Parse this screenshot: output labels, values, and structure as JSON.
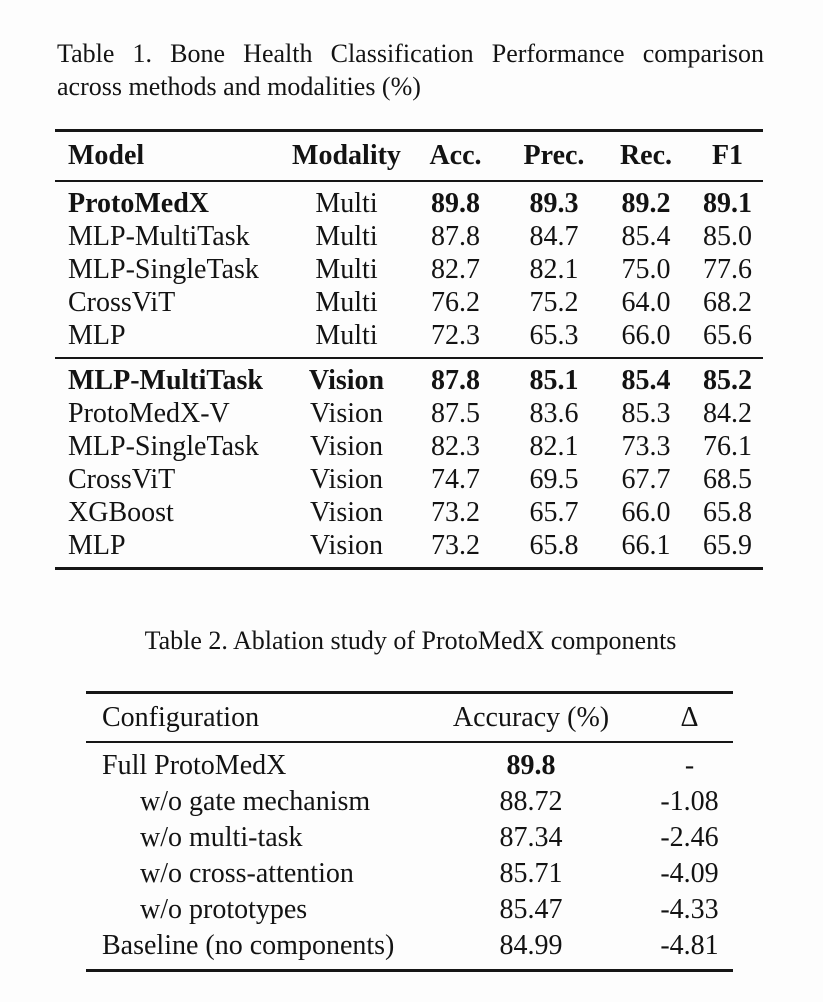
{
  "page": {
    "background": "#fdfdfd",
    "text_color": "#131313",
    "rule_color": "#161616"
  },
  "table1": {
    "caption": {
      "line1": "Table 1. Bone Health Classification Performance comparison",
      "line2": "across methods and modalities (%)"
    },
    "columns": [
      "Model",
      "Modality",
      "Acc.",
      "Prec.",
      "Rec.",
      "F1"
    ],
    "sections": {
      "multi": {
        "rows": [
          {
            "cells": [
              "ProtoMedX",
              "Multi",
              "89.8",
              "89.3",
              "89.2",
              "89.1"
            ],
            "bold": [
              true,
              false,
              true,
              true,
              true,
              true
            ],
            "indent": false
          },
          {
            "cells": [
              "MLP-MultiTask",
              "Multi",
              "87.8",
              "84.7",
              "85.4",
              "85.0"
            ],
            "bold": [
              false,
              false,
              false,
              false,
              false,
              false
            ],
            "indent": false
          },
          {
            "cells": [
              "MLP-SingleTask",
              "Multi",
              "82.7",
              "82.1",
              "75.0",
              "77.6"
            ],
            "bold": [
              false,
              false,
              false,
              false,
              false,
              false
            ],
            "indent": false
          },
          {
            "cells": [
              "CrossViT",
              "Multi",
              "76.2",
              "75.2",
              "64.0",
              "68.2"
            ],
            "bold": [
              false,
              false,
              false,
              false,
              false,
              false
            ],
            "indent": false
          },
          {
            "cells": [
              "MLP",
              "Multi",
              "72.3",
              "65.3",
              "66.0",
              "65.6"
            ],
            "bold": [
              false,
              false,
              false,
              false,
              false,
              false
            ],
            "indent": false
          }
        ]
      },
      "vision": {
        "rows": [
          {
            "cells": [
              "MLP-MultiTask",
              "Vision",
              "87.8",
              "85.1",
              "85.4",
              "85.2"
            ],
            "bold": [
              true,
              true,
              true,
              true,
              true,
              true
            ],
            "indent": false
          },
          {
            "cells": [
              "ProtoMedX-V",
              "Vision",
              "87.5",
              "83.6",
              "85.3",
              "84.2"
            ],
            "bold": [
              false,
              false,
              false,
              false,
              false,
              false
            ],
            "indent": false
          },
          {
            "cells": [
              "MLP-SingleTask",
              "Vision",
              "82.3",
              "82.1",
              "73.3",
              "76.1"
            ],
            "bold": [
              false,
              false,
              false,
              false,
              false,
              false
            ],
            "indent": false
          },
          {
            "cells": [
              "CrossViT",
              "Vision",
              "74.7",
              "69.5",
              "67.7",
              "68.5"
            ],
            "bold": [
              false,
              false,
              false,
              false,
              false,
              false
            ],
            "indent": false
          },
          {
            "cells": [
              "XGBoost",
              "Vision",
              "73.2",
              "65.7",
              "66.0",
              "65.8"
            ],
            "bold": [
              false,
              false,
              false,
              false,
              false,
              false
            ],
            "indent": false
          },
          {
            "cells": [
              "MLP",
              "Vision",
              "73.2",
              "65.8",
              "66.1",
              "65.9"
            ],
            "bold": [
              false,
              false,
              false,
              false,
              false,
              false
            ],
            "indent": false
          }
        ]
      }
    }
  },
  "table2": {
    "caption": "Table 2. Ablation study of ProtoMedX components",
    "columns": [
      "Configuration",
      "Accuracy (%)",
      "Δ"
    ],
    "rows": [
      {
        "cells": [
          "Full ProtoMedX",
          "89.8",
          "-"
        ],
        "bold": [
          false,
          true,
          false
        ],
        "indent": false
      },
      {
        "cells": [
          "w/o gate mechanism",
          "88.72",
          "-1.08"
        ],
        "bold": [
          false,
          false,
          false
        ],
        "indent": true
      },
      {
        "cells": [
          "w/o multi-task",
          "87.34",
          "-2.46"
        ],
        "bold": [
          false,
          false,
          false
        ],
        "indent": true
      },
      {
        "cells": [
          "w/o cross-attention",
          "85.71",
          "-4.09"
        ],
        "bold": [
          false,
          false,
          false
        ],
        "indent": true
      },
      {
        "cells": [
          "w/o prototypes",
          "85.47",
          "-4.33"
        ],
        "bold": [
          false,
          false,
          false
        ],
        "indent": true
      },
      {
        "cells": [
          "Baseline (no components)",
          "84.99",
          "-4.81"
        ],
        "bold": [
          false,
          false,
          false
        ],
        "indent": false
      }
    ]
  }
}
